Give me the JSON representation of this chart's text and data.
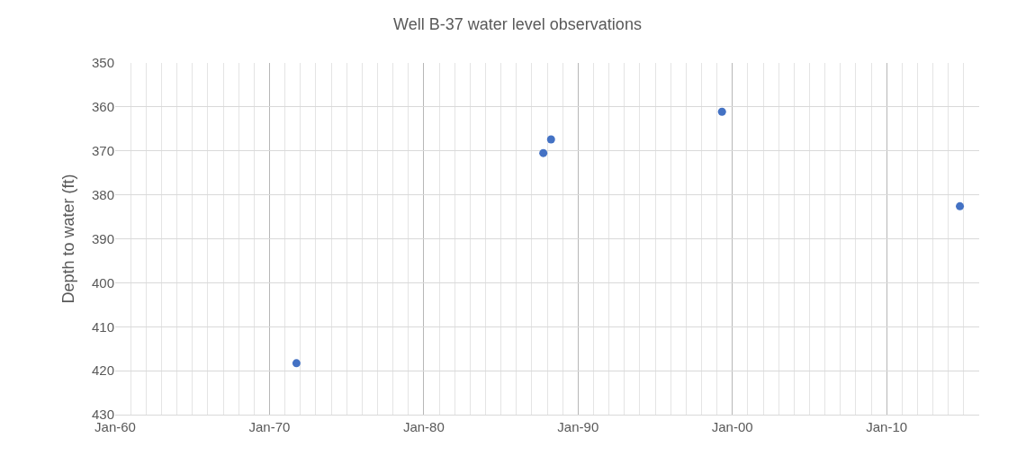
{
  "chart_data": {
    "type": "scatter",
    "title": "Well B-37 water level observations",
    "ylabel": "Depth to water (ft)",
    "x": [
      "1971-10",
      "1987-10",
      "1988-04",
      "1999-05",
      "2014-10"
    ],
    "series": [
      {
        "color": "#4472c4",
        "values": [
          418.3,
          370.5,
          367.4,
          361.1,
          382.6
        ]
      }
    ],
    "xlim": [
      "1960-01",
      "2016-01"
    ],
    "xticks": [
      {
        "value": "1960-01",
        "label": "Jan-60"
      },
      {
        "value": "1961-01",
        "label": null
      },
      {
        "value": "1962-01",
        "label": null
      },
      {
        "value": "1963-01",
        "label": null
      },
      {
        "value": "1964-01",
        "label": null
      },
      {
        "value": "1965-01",
        "label": null
      },
      {
        "value": "1966-01",
        "label": null
      },
      {
        "value": "1967-01",
        "label": null
      },
      {
        "value": "1968-01",
        "label": null
      },
      {
        "value": "1969-01",
        "label": null
      },
      {
        "value": "1970-01",
        "label": "Jan-70"
      },
      {
        "value": "1971-01",
        "label": null
      },
      {
        "value": "1972-01",
        "label": null
      },
      {
        "value": "1973-01",
        "label": null
      },
      {
        "value": "1974-01",
        "label": null
      },
      {
        "value": "1975-01",
        "label": null
      },
      {
        "value": "1976-01",
        "label": null
      },
      {
        "value": "1977-01",
        "label": null
      },
      {
        "value": "1978-01",
        "label": null
      },
      {
        "value": "1979-01",
        "label": null
      },
      {
        "value": "1980-01",
        "label": "Jan-80"
      },
      {
        "value": "1981-01",
        "label": null
      },
      {
        "value": "1982-01",
        "label": null
      },
      {
        "value": "1983-01",
        "label": null
      },
      {
        "value": "1984-01",
        "label": null
      },
      {
        "value": "1985-01",
        "label": null
      },
      {
        "value": "1986-01",
        "label": null
      },
      {
        "value": "1987-01",
        "label": null
      },
      {
        "value": "1988-01",
        "label": null
      },
      {
        "value": "1989-01",
        "label": null
      },
      {
        "value": "1990-01",
        "label": "Jan-90"
      },
      {
        "value": "1991-01",
        "label": null
      },
      {
        "value": "1992-01",
        "label": null
      },
      {
        "value": "1993-01",
        "label": null
      },
      {
        "value": "1994-01",
        "label": null
      },
      {
        "value": "1995-01",
        "label": null
      },
      {
        "value": "1996-01",
        "label": null
      },
      {
        "value": "1997-01",
        "label": null
      },
      {
        "value": "1998-01",
        "label": null
      },
      {
        "value": "1999-01",
        "label": null
      },
      {
        "value": "2000-01",
        "label": "Jan-00"
      },
      {
        "value": "2001-01",
        "label": null
      },
      {
        "value": "2002-01",
        "label": null
      },
      {
        "value": "2003-01",
        "label": null
      },
      {
        "value": "2004-01",
        "label": null
      },
      {
        "value": "2005-01",
        "label": null
      },
      {
        "value": "2006-01",
        "label": null
      },
      {
        "value": "2007-01",
        "label": null
      },
      {
        "value": "2008-01",
        "label": null
      },
      {
        "value": "2009-01",
        "label": null
      },
      {
        "value": "2010-01",
        "label": "Jan-10"
      },
      {
        "value": "2011-01",
        "label": null
      },
      {
        "value": "2012-01",
        "label": null
      },
      {
        "value": "2013-01",
        "label": null
      },
      {
        "value": "2014-01",
        "label": null
      },
      {
        "value": "2015-01",
        "label": null
      }
    ],
    "ylim": [
      430,
      350
    ],
    "yticks": [
      350,
      360,
      370,
      380,
      390,
      400,
      410,
      420,
      430
    ],
    "grid": true,
    "marker": "circle"
  }
}
